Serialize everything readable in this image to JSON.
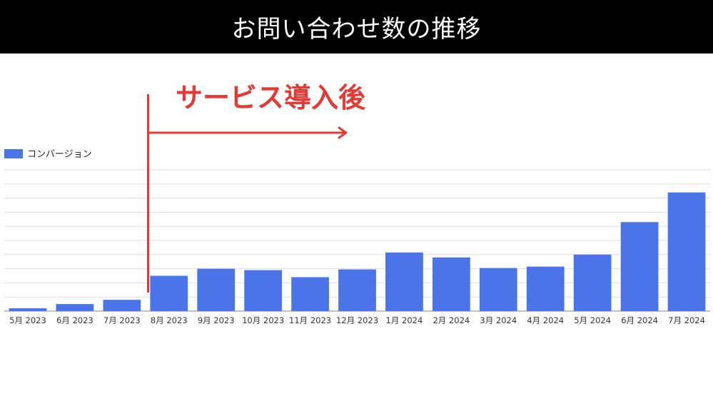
{
  "header": {
    "title": "お問い合わせ数の推移"
  },
  "annotation": {
    "label": "サービス導入後",
    "color": "#e53935"
  },
  "chart_data": {
    "type": "bar",
    "categories": [
      "5月 2023",
      "6月 2023",
      "7月 2023",
      "8月 2023",
      "9月 2023",
      "10月 2023",
      "11月 2023",
      "12月 2023",
      "1月 2024",
      "2月 2024",
      "3月 2024",
      "4月 2024",
      "5月 2024",
      "6月 2024",
      "7月 2024"
    ],
    "series": [
      {
        "name": "コンバージョン",
        "color": "#4a74e8",
        "values": [
          2,
          5,
          8,
          25,
          30,
          29,
          24,
          29.5,
          41.5,
          38,
          30.5,
          31.5,
          40,
          63,
          84
        ]
      }
    ],
    "ylim": [
      0,
      100
    ],
    "grid": true,
    "legend": "top-left"
  }
}
